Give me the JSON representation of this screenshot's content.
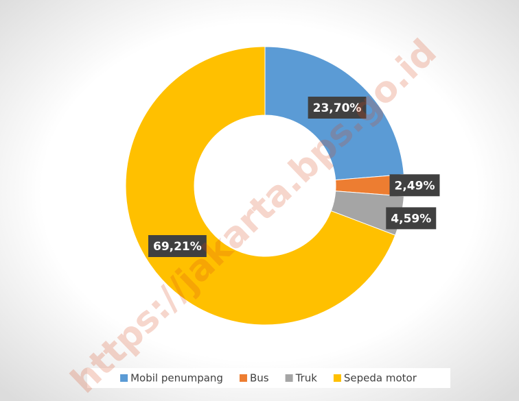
{
  "chart_data": {
    "type": "donut",
    "categories": [
      "Mobil penumpang",
      "Bus",
      "Truk",
      "Sepeda motor"
    ],
    "values": [
      23.7,
      2.49,
      4.59,
      69.21
    ],
    "value_labels": [
      "23,70%",
      "2,49%",
      "4,59%",
      "69,21%"
    ],
    "colors": [
      "#5b9bd5",
      "#ed7d31",
      "#a5a5a5",
      "#ffc000"
    ],
    "legend": "bottom",
    "watermark": "https://jakarta.bps.go.id"
  }
}
